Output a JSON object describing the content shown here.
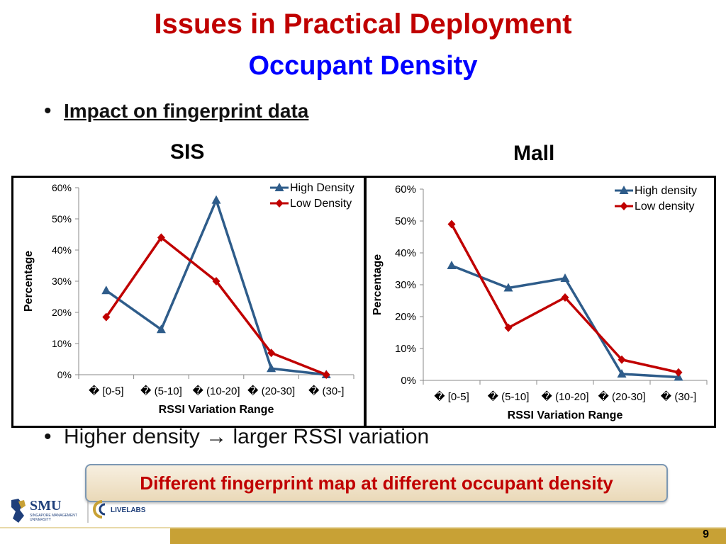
{
  "title": {
    "line1": "Issues in Practical Deployment",
    "line2": "Occupant Density"
  },
  "bullets": [
    {
      "text": "Impact on fingerprint data"
    },
    {
      "text_pre": "Higher density ",
      "arrow": "→",
      "text_post": " larger RSSI variation"
    }
  ],
  "callout": "Different fingerprint map at different occupant density",
  "page_number": "9",
  "logos": {
    "smu": "SMU",
    "smu_sub1": "SINGAPORE MANAGEMENT",
    "smu_sub2": "UNIVERSITY",
    "livelabs": "LIVELABS"
  },
  "chart_data": [
    {
      "type": "line",
      "label": "SIS",
      "categories": [
        "� [0-5]",
        "� (5-10]",
        "� (10-20]",
        "� (20-30]",
        "� (30-]"
      ],
      "series": [
        {
          "name": "High Density",
          "values": [
            27,
            14.5,
            56,
            2,
            0
          ],
          "color": "#2e5c8a",
          "marker": "triangle"
        },
        {
          "name": "Low Density",
          "values": [
            18.5,
            44,
            30,
            7,
            0
          ],
          "color": "#c00000",
          "marker": "diamond"
        }
      ],
      "xlabel": "RSSI Variation Range",
      "ylabel": "Percentage",
      "ylim": [
        0,
        60
      ],
      "yticks": [
        "0%",
        "10%",
        "20%",
        "30%",
        "40%",
        "50%",
        "60%"
      ],
      "legend": "top-right"
    },
    {
      "type": "line",
      "label": "Mall",
      "categories": [
        "� [0-5]",
        "� (5-10]",
        "� (10-20]",
        "� (20-30]",
        "� (30-]"
      ],
      "series": [
        {
          "name": "High density",
          "values": [
            36,
            29,
            32,
            2,
            1
          ],
          "color": "#2e5c8a",
          "marker": "triangle"
        },
        {
          "name": "Low density",
          "values": [
            49,
            16.5,
            26,
            6.5,
            2.5
          ],
          "color": "#c00000",
          "marker": "diamond"
        }
      ],
      "xlabel": "RSSI Variation Range",
      "ylabel": "Percentage",
      "ylim": [
        0,
        60
      ],
      "yticks": [
        "0%",
        "10%",
        "20%",
        "30%",
        "40%",
        "50%",
        "60%"
      ],
      "legend": "top-right"
    }
  ]
}
